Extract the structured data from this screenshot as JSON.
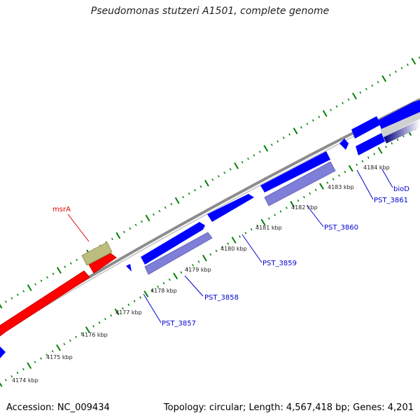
{
  "title": "Pseudomonas stutzeri A1501, complete genome",
  "accession_text": "Accession: NC_009434",
  "topology_text": "Topology: circular; Length: 4,567,418 bp; Genes: 4,201",
  "colors": {
    "cds_forward": "#0000ff",
    "cds_reverse": "#7f7fd9",
    "msra_gene": "#ff0000",
    "msra_other": "#bdbd7f",
    "backbone": "#8c8c8c",
    "ticks": "#008000",
    "labels": "#0000cc",
    "msra_label": "#e00000"
  },
  "ruler_labels": [
    "4174 kbp",
    "4175 kbp",
    "4176 kbp",
    "4177 kbp",
    "4178 kbp",
    "4179 kbp",
    "4180 kbp",
    "4181 kbp",
    "4182 kbp",
    "4183 kbp",
    "4184 kbp"
  ],
  "feature_labels": [
    "msrA",
    "PST_3857",
    "PST_3858",
    "PST_3859",
    "PST_3860",
    "PST_3861",
    "bioD"
  ]
}
